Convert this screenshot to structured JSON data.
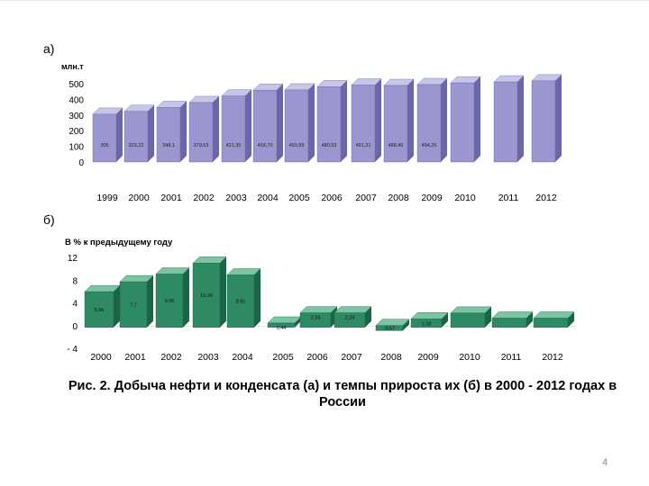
{
  "panels": {
    "a_label": "а)",
    "b_label": "б)"
  },
  "caption": "Рис. 2. Добыча нефти и конденсата (а) и темпы прироста их (б) в 2000 - 2012 годах в России",
  "page_number": "4",
  "colors": {
    "a_front": "#9a96cf",
    "a_side": "#6a66a8",
    "a_top": "#c8c6e8",
    "b_front": "#2e8a63",
    "b_side": "#1c6447",
    "b_top": "#7cc4a3"
  },
  "chart_data": [
    {
      "type": "bar",
      "title": "",
      "ylabel": "млн.т",
      "ylim": [
        0,
        500
      ],
      "yticks": [
        "0",
        "100",
        "200",
        "300",
        "400",
        "500"
      ],
      "categories": [
        "1999",
        "2000",
        "2001",
        "2002",
        "2003",
        "2004",
        "2005",
        "2006",
        "2007",
        "2008",
        "2009",
        "2010",
        "2011",
        "2012"
      ],
      "values": [
        305,
        323.22,
        348.1,
        379.63,
        421.35,
        458.7,
        459.99,
        480.53,
        491.31,
        488.46,
        494.26,
        505,
        511,
        518
      ],
      "labels": [
        "305",
        "323,22",
        "348,1",
        "379,63",
        "421,35",
        "458,70",
        "459,99",
        "480,53",
        "491,31",
        "488,46",
        "494,26",
        "",
        "",
        ""
      ]
    },
    {
      "type": "bar",
      "title": "В % к предыдущему году",
      "ylim": [
        -4,
        12
      ],
      "yticks": [
        "- 4",
        "0",
        "4",
        "8",
        "12"
      ],
      "categories": [
        "2000",
        "2001",
        "2002",
        "2003",
        "2004",
        "2005",
        "2006",
        "2007",
        "2008",
        "2009",
        "2010",
        "2011",
        "2012"
      ],
      "values": [
        5.96,
        7.7,
        9.06,
        10.99,
        8.91,
        0.44,
        2.24,
        2.24,
        -0.57,
        1.18,
        2.2,
        1.3,
        1.3
      ],
      "labels": [
        "5,96",
        "7,7",
        "9,06",
        "10,99",
        "8,91",
        "0,44",
        "2,24",
        "2,24",
        "-0,57",
        "1,18",
        "",
        "",
        ""
      ]
    }
  ]
}
